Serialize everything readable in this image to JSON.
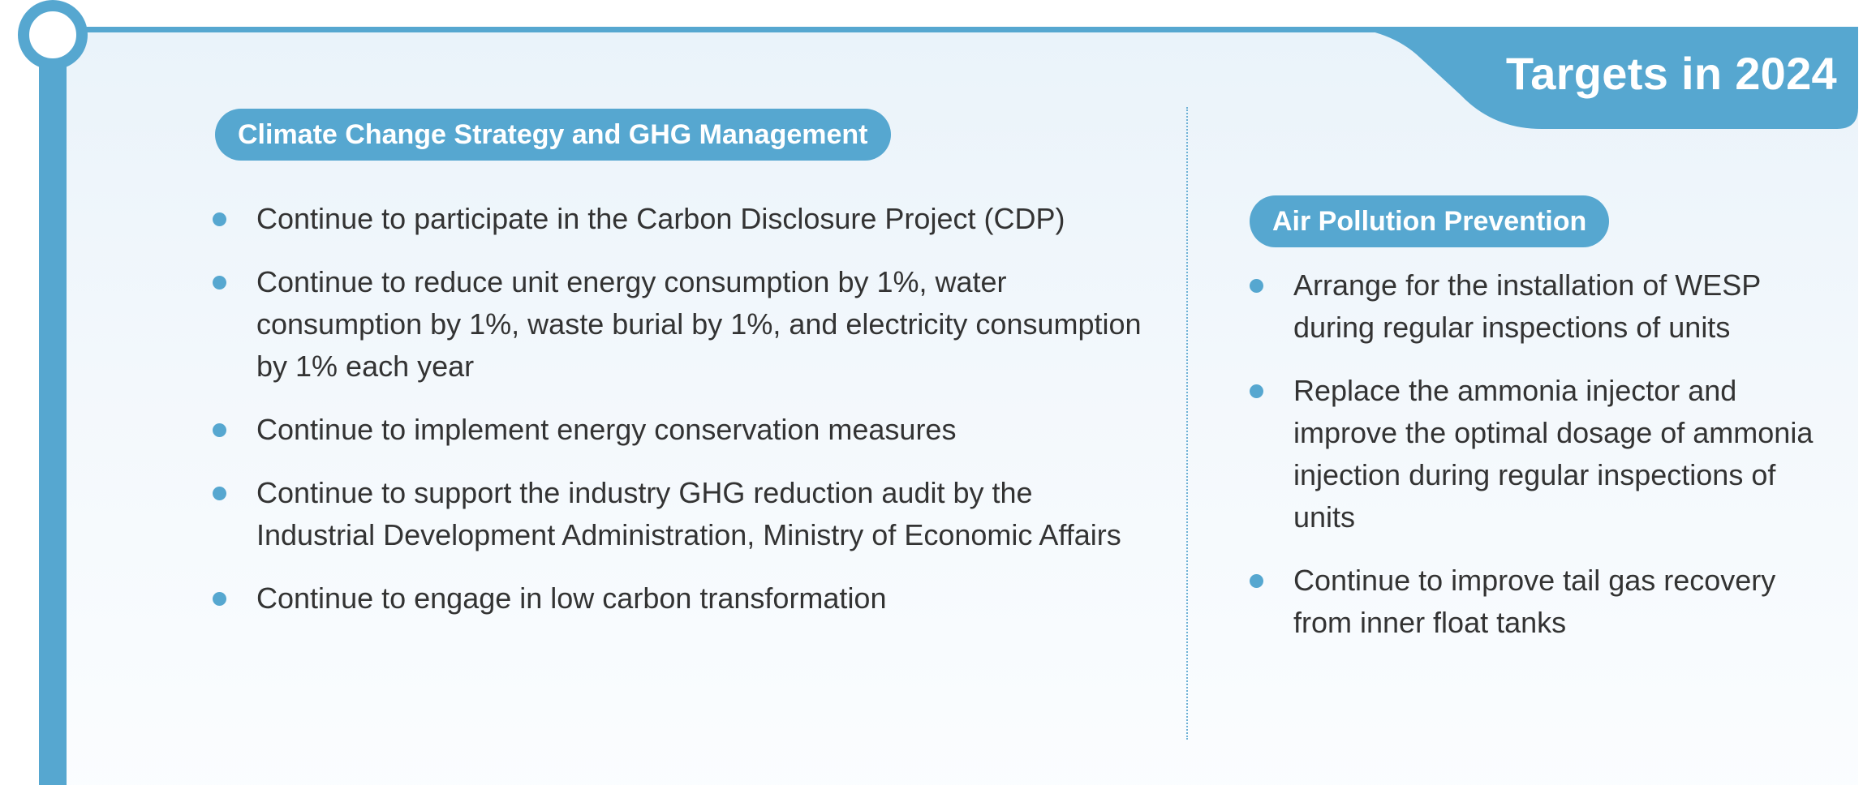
{
  "colors": {
    "accent": "#56a7d0",
    "text": "#333333",
    "panel_top": "#eaf3fa",
    "panel_bottom": "#fbfdff"
  },
  "header": {
    "title": "Targets in 2024"
  },
  "left_section": {
    "heading": "Climate Change Strategy and GHG Management",
    "items": [
      "Continue to participate in the Carbon Disclosure Project (CDP)",
      "Continue to reduce unit energy consumption by 1%, water consumption by 1%, waste burial by 1%, and electricity consumption by 1% each year",
      "Continue to implement energy conservation measures",
      "Continue to support the industry GHG reduction audit by the Industrial Development Administration, Ministry of Economic Affairs",
      "Continue to engage in low carbon transformation"
    ]
  },
  "right_section": {
    "heading": "Air Pollution Prevention",
    "items": [
      "Arrange for the installation of WESP during regular inspections of units",
      "Replace the ammonia injector and improve the optimal dosage of ammonia injection during regular inspections of units",
      "Continue to improve tail gas recovery from inner float tanks"
    ]
  }
}
